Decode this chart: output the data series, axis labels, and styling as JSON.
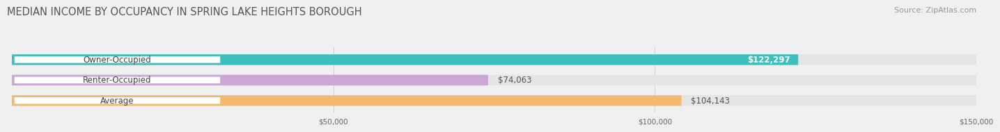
{
  "title": "MEDIAN INCOME BY OCCUPANCY IN SPRING LAKE HEIGHTS BOROUGH",
  "source": "Source: ZipAtlas.com",
  "categories": [
    "Owner-Occupied",
    "Renter-Occupied",
    "Average"
  ],
  "values": [
    122297,
    74063,
    104143
  ],
  "bar_colors": [
    "#3bbfbf",
    "#c9a8d4",
    "#f5b96e"
  ],
  "bar_labels": [
    "$122,297",
    "$74,063",
    "$104,143"
  ],
  "label_inside": [
    true,
    false,
    false
  ],
  "xlim": [
    0,
    150000
  ],
  "xticks": [
    0,
    50000,
    100000,
    150000
  ],
  "xtick_labels": [
    "$50,000",
    "$100,000",
    "$150,000"
  ],
  "bg_color": "#f0f0f0",
  "bar_bg_color": "#e4e4e4",
  "title_fontsize": 10.5,
  "source_fontsize": 8,
  "label_fontsize": 8.5,
  "bar_height": 0.52
}
